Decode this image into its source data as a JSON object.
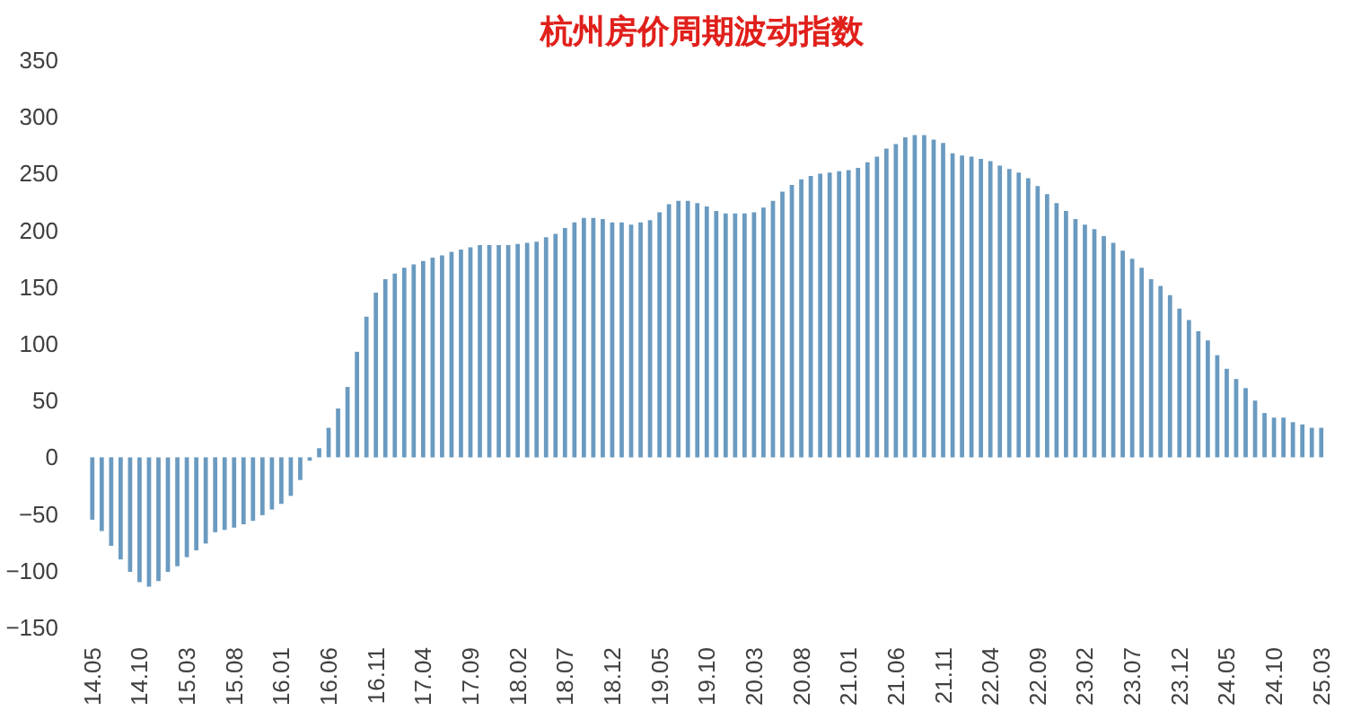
{
  "chart_data": {
    "type": "bar",
    "title": "杭州房价周期波动指数",
    "color": "#6a9ac0",
    "categories": [
      "14.05",
      null,
      null,
      null,
      null,
      "14.10",
      null,
      null,
      null,
      null,
      "15.03",
      null,
      null,
      null,
      null,
      "15.08",
      null,
      null,
      null,
      null,
      "16.01",
      null,
      null,
      null,
      null,
      "16.06",
      null,
      null,
      null,
      null,
      "16.11",
      null,
      null,
      null,
      null,
      "17.04",
      null,
      null,
      null,
      null,
      "17.09",
      null,
      null,
      null,
      null,
      "18.02",
      null,
      null,
      null,
      null,
      "18.07",
      null,
      null,
      null,
      null,
      "18.12",
      null,
      null,
      null,
      null,
      "19.05",
      null,
      null,
      null,
      null,
      "19.10",
      null,
      null,
      null,
      null,
      "20.03",
      null,
      null,
      null,
      null,
      "20.08",
      null,
      null,
      null,
      null,
      "21.01",
      null,
      null,
      null,
      null,
      "21.06",
      null,
      null,
      null,
      null,
      "21.11",
      null,
      null,
      null,
      null,
      "22.04",
      null,
      null,
      null,
      null,
      "22.09",
      null,
      null,
      null,
      null,
      "23.02",
      null,
      null,
      null,
      null,
      "23.07",
      null,
      null,
      null,
      null,
      "23.12",
      null,
      null,
      null,
      null,
      "24.05",
      null,
      null,
      null,
      null,
      "24.10",
      null,
      null,
      null,
      null,
      "25.03"
    ],
    "values": [
      -55,
      -65,
      -78,
      -90,
      -101,
      -110,
      -114,
      -109,
      -101,
      -96,
      -88,
      -82,
      -76,
      -66,
      -64,
      -62,
      -59,
      -56,
      -51,
      -46,
      -41,
      -34,
      -20,
      -3,
      8,
      26,
      43,
      62,
      93,
      124,
      145,
      157,
      162,
      167,
      170,
      173,
      176,
      178,
      181,
      183,
      185,
      187,
      187,
      187,
      187,
      188,
      189,
      190,
      194,
      197,
      202,
      207,
      211,
      211,
      210,
      207,
      207,
      205,
      207,
      209,
      216,
      223,
      226,
      226,
      224,
      221,
      217,
      215,
      215,
      215,
      216,
      220,
      226,
      234,
      240,
      245,
      248,
      250,
      251,
      252,
      253,
      255,
      260,
      265,
      272,
      276,
      282,
      284,
      284,
      280,
      277,
      268,
      266,
      265,
      263,
      261,
      257,
      254,
      251,
      246,
      239,
      232,
      224,
      217,
      210,
      205,
      201,
      195,
      189,
      182,
      175,
      167,
      157,
      151,
      143,
      131,
      121,
      111,
      103,
      90,
      78,
      69,
      61,
      50,
      39,
      35,
      35,
      31,
      29,
      26,
      26
    ],
    "ylim": [
      -150,
      350
    ],
    "yticks": [
      -150,
      -100,
      -50,
      0,
      50,
      100,
      150,
      200,
      250,
      300,
      350
    ]
  }
}
